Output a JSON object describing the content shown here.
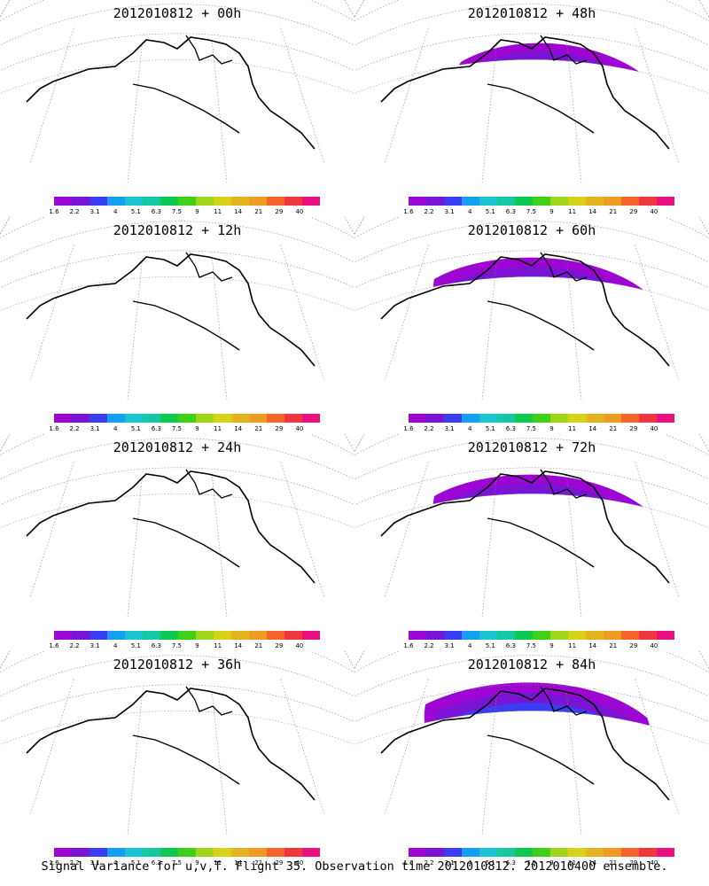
{
  "colorbar": {
    "colors": [
      "#9d05d3",
      "#7a14d4",
      "#3a3ef0",
      "#149ff2",
      "#1bc4d4",
      "#15c9a2",
      "#11c84e",
      "#3fd11a",
      "#9fd61c",
      "#d6d215",
      "#e3b41f",
      "#ef9a23",
      "#f5652a",
      "#f0363f",
      "#ec0f82"
    ],
    "tick_labels": [
      "1.6",
      "2.2",
      "3.1",
      "4",
      "5.1",
      "6.3",
      "7.5",
      "9",
      "11",
      "14",
      "21",
      "29",
      "40"
    ]
  },
  "panels": [
    {
      "title": "2012010812 + 00h",
      "level": 1
    },
    {
      "title": "2012010812 + 48h",
      "level": 5
    },
    {
      "title": "2012010812 + 12h",
      "level": 2
    },
    {
      "title": "2012010812 + 60h",
      "level": 6
    },
    {
      "title": "2012010812 + 24h",
      "level": 3
    },
    {
      "title": "2012010812 + 72h",
      "level": 6
    },
    {
      "title": "2012010812 + 36h",
      "level": 4
    },
    {
      "title": "2012010812 + 84h",
      "level": 7
    }
  ],
  "caption": "Signal Variance for u,v,T. Flight 35. Observation time 2012010812. 2012010400 ensemble."
}
